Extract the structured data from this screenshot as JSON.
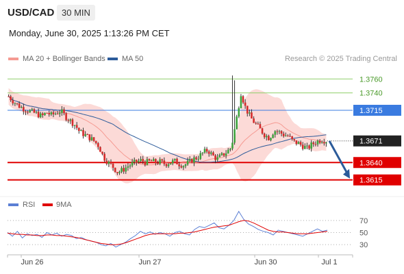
{
  "header": {
    "symbol": "USD/CAD",
    "timeframe": "30 MIN",
    "datetime": "Monday, June 30, 2025 1:13:26 PM CET"
  },
  "legend": {
    "ma20_label": "MA 20 + Bollinger Bands",
    "ma50_label": "MA 50",
    "credit": "Research © 2025 Trading Central",
    "colors": {
      "ma20": "#f59a92",
      "ma50": "#2c5b9a"
    }
  },
  "chart_data": [
    {
      "type": "candlestick",
      "title": "",
      "xlabel": "",
      "ylabel": "",
      "ylim": [
        1.3595,
        1.3775
      ],
      "x_tick_labels": [
        "Jun 26",
        "Jun 27",
        "Jun 30",
        "Jul 1"
      ],
      "current_price": 1.3671,
      "levels": [
        {
          "value": 1.376,
          "label": "1.3760",
          "kind": "resistance-target",
          "color": "#8fcf6a"
        },
        {
          "value": 1.374,
          "label": "1.3740",
          "kind": "resistance-target",
          "color": "#8fcf6a"
        },
        {
          "value": 1.3715,
          "label": "1.3715",
          "kind": "pivot",
          "color": "#3a7be0"
        },
        {
          "value": 1.364,
          "label": "1.3640",
          "kind": "support",
          "color": "#e00000"
        },
        {
          "value": 1.3615,
          "label": "1.3615",
          "kind": "support",
          "color": "#e00000"
        }
      ],
      "current_label": "1.3671",
      "close_series": [
        1.3735,
        1.3728,
        1.3722,
        1.3718,
        1.3715,
        1.3712,
        1.371,
        1.3706,
        1.3712,
        1.3708,
        1.3711,
        1.3714,
        1.3706,
        1.37,
        1.3694,
        1.3684,
        1.368,
        1.3676,
        1.3671,
        1.3664,
        1.3648,
        1.364,
        1.3634,
        1.3626,
        1.3629,
        1.3634,
        1.3638,
        1.3641,
        1.3643,
        1.364,
        1.3642,
        1.364,
        1.3641,
        1.3638,
        1.364,
        1.3642,
        1.3638,
        1.3636,
        1.364,
        1.3645,
        1.3648,
        1.3654,
        1.3658,
        1.365,
        1.3645,
        1.365,
        1.3655,
        1.3662,
        1.37,
        1.374,
        1.3718,
        1.3705,
        1.3696,
        1.3688,
        1.368,
        1.3675,
        1.3686,
        1.3684,
        1.368,
        1.3678,
        1.367,
        1.3668,
        1.3664,
        1.366,
        1.3666,
        1.367,
        1.3673,
        1.3671
      ],
      "candle_count": 150
    },
    {
      "type": "line",
      "title": "",
      "legend": [
        "RSI",
        "9MA"
      ],
      "ylim": [
        20,
        80
      ],
      "y_ticks": [
        70,
        50,
        30
      ],
      "colors": {
        "rsi": "#5b7fd4",
        "ma9": "#e00000"
      },
      "rsi_values": [
        50,
        44,
        52,
        41,
        48,
        45,
        47,
        42,
        50,
        46,
        49,
        44,
        47,
        45,
        40,
        42,
        38,
        36,
        34,
        30,
        28,
        32,
        26,
        30,
        34,
        40,
        45,
        52,
        48,
        51,
        47,
        50,
        48,
        44,
        50,
        52,
        48,
        46,
        55,
        60,
        58,
        62,
        66,
        58,
        56,
        62,
        70,
        85,
        72,
        64,
        60,
        55,
        52,
        50,
        46,
        54,
        52,
        50,
        48,
        46,
        44,
        48,
        52,
        56,
        52,
        54
      ],
      "ma9_values": [
        49,
        48,
        47,
        47,
        46,
        46,
        45,
        45,
        46,
        46,
        45,
        45,
        44,
        43,
        42,
        40,
        38,
        36,
        34,
        32,
        31,
        30,
        30,
        31,
        33,
        36,
        39,
        42,
        45,
        47,
        48,
        48,
        48,
        48,
        48,
        49,
        49,
        50,
        51,
        53,
        55,
        57,
        59,
        60,
        61,
        62,
        65,
        68,
        70,
        69,
        66,
        62,
        58,
        54,
        52,
        51,
        51,
        50,
        49,
        48,
        48,
        48,
        49,
        50,
        51,
        52
      ]
    }
  ]
}
